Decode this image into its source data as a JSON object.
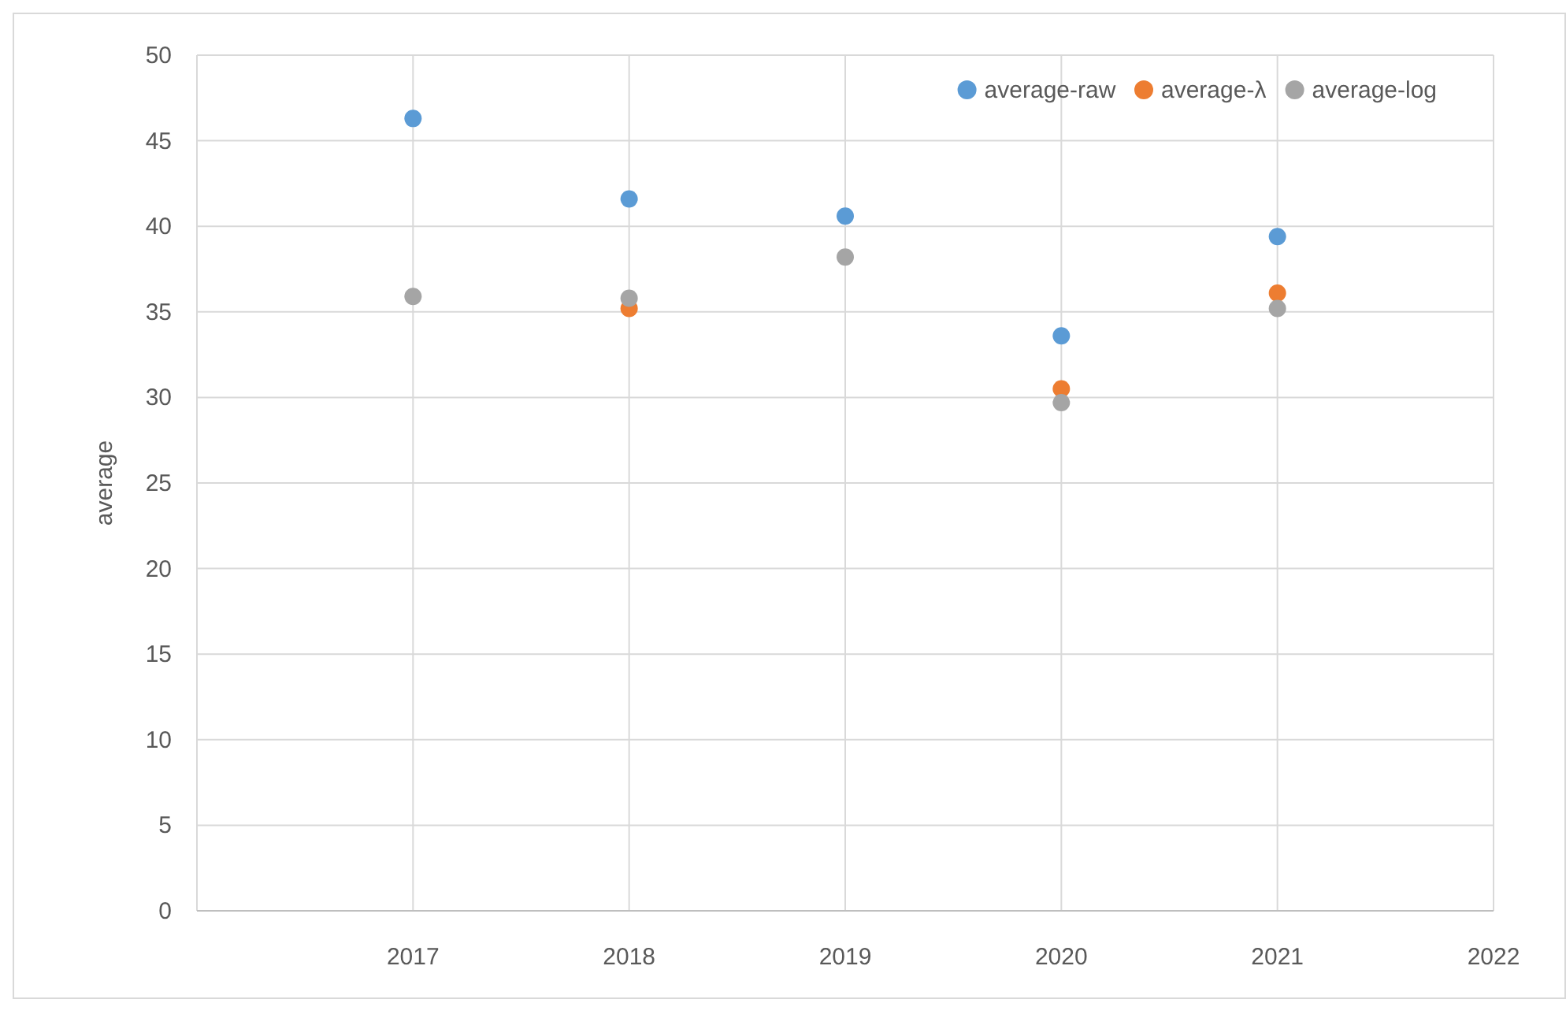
{
  "chart_data": {
    "type": "scatter",
    "ylabel": "average",
    "x": [
      2017,
      2018,
      2019,
      2020,
      2021
    ],
    "series": [
      {
        "name": "average-raw",
        "color": "#5b9bd5",
        "values": [
          46.3,
          41.6,
          40.6,
          33.6,
          39.4
        ]
      },
      {
        "name": "average-λ",
        "color": "#ed7d31",
        "values": [
          null,
          35.2,
          null,
          30.5,
          36.1
        ]
      },
      {
        "name": "average-log",
        "color": "#a5a5a5",
        "values": [
          35.9,
          35.8,
          38.2,
          29.7,
          35.2
        ]
      }
    ],
    "xlim": [
      2016,
      2022
    ],
    "xticks": [
      2017,
      2018,
      2019,
      2020,
      2021,
      2022
    ],
    "ylim": [
      0,
      50
    ],
    "yticks": [
      0,
      5,
      10,
      15,
      20,
      25,
      30,
      35,
      40,
      45,
      50
    ],
    "grid": true,
    "legend": "top right",
    "marker": "circle"
  }
}
